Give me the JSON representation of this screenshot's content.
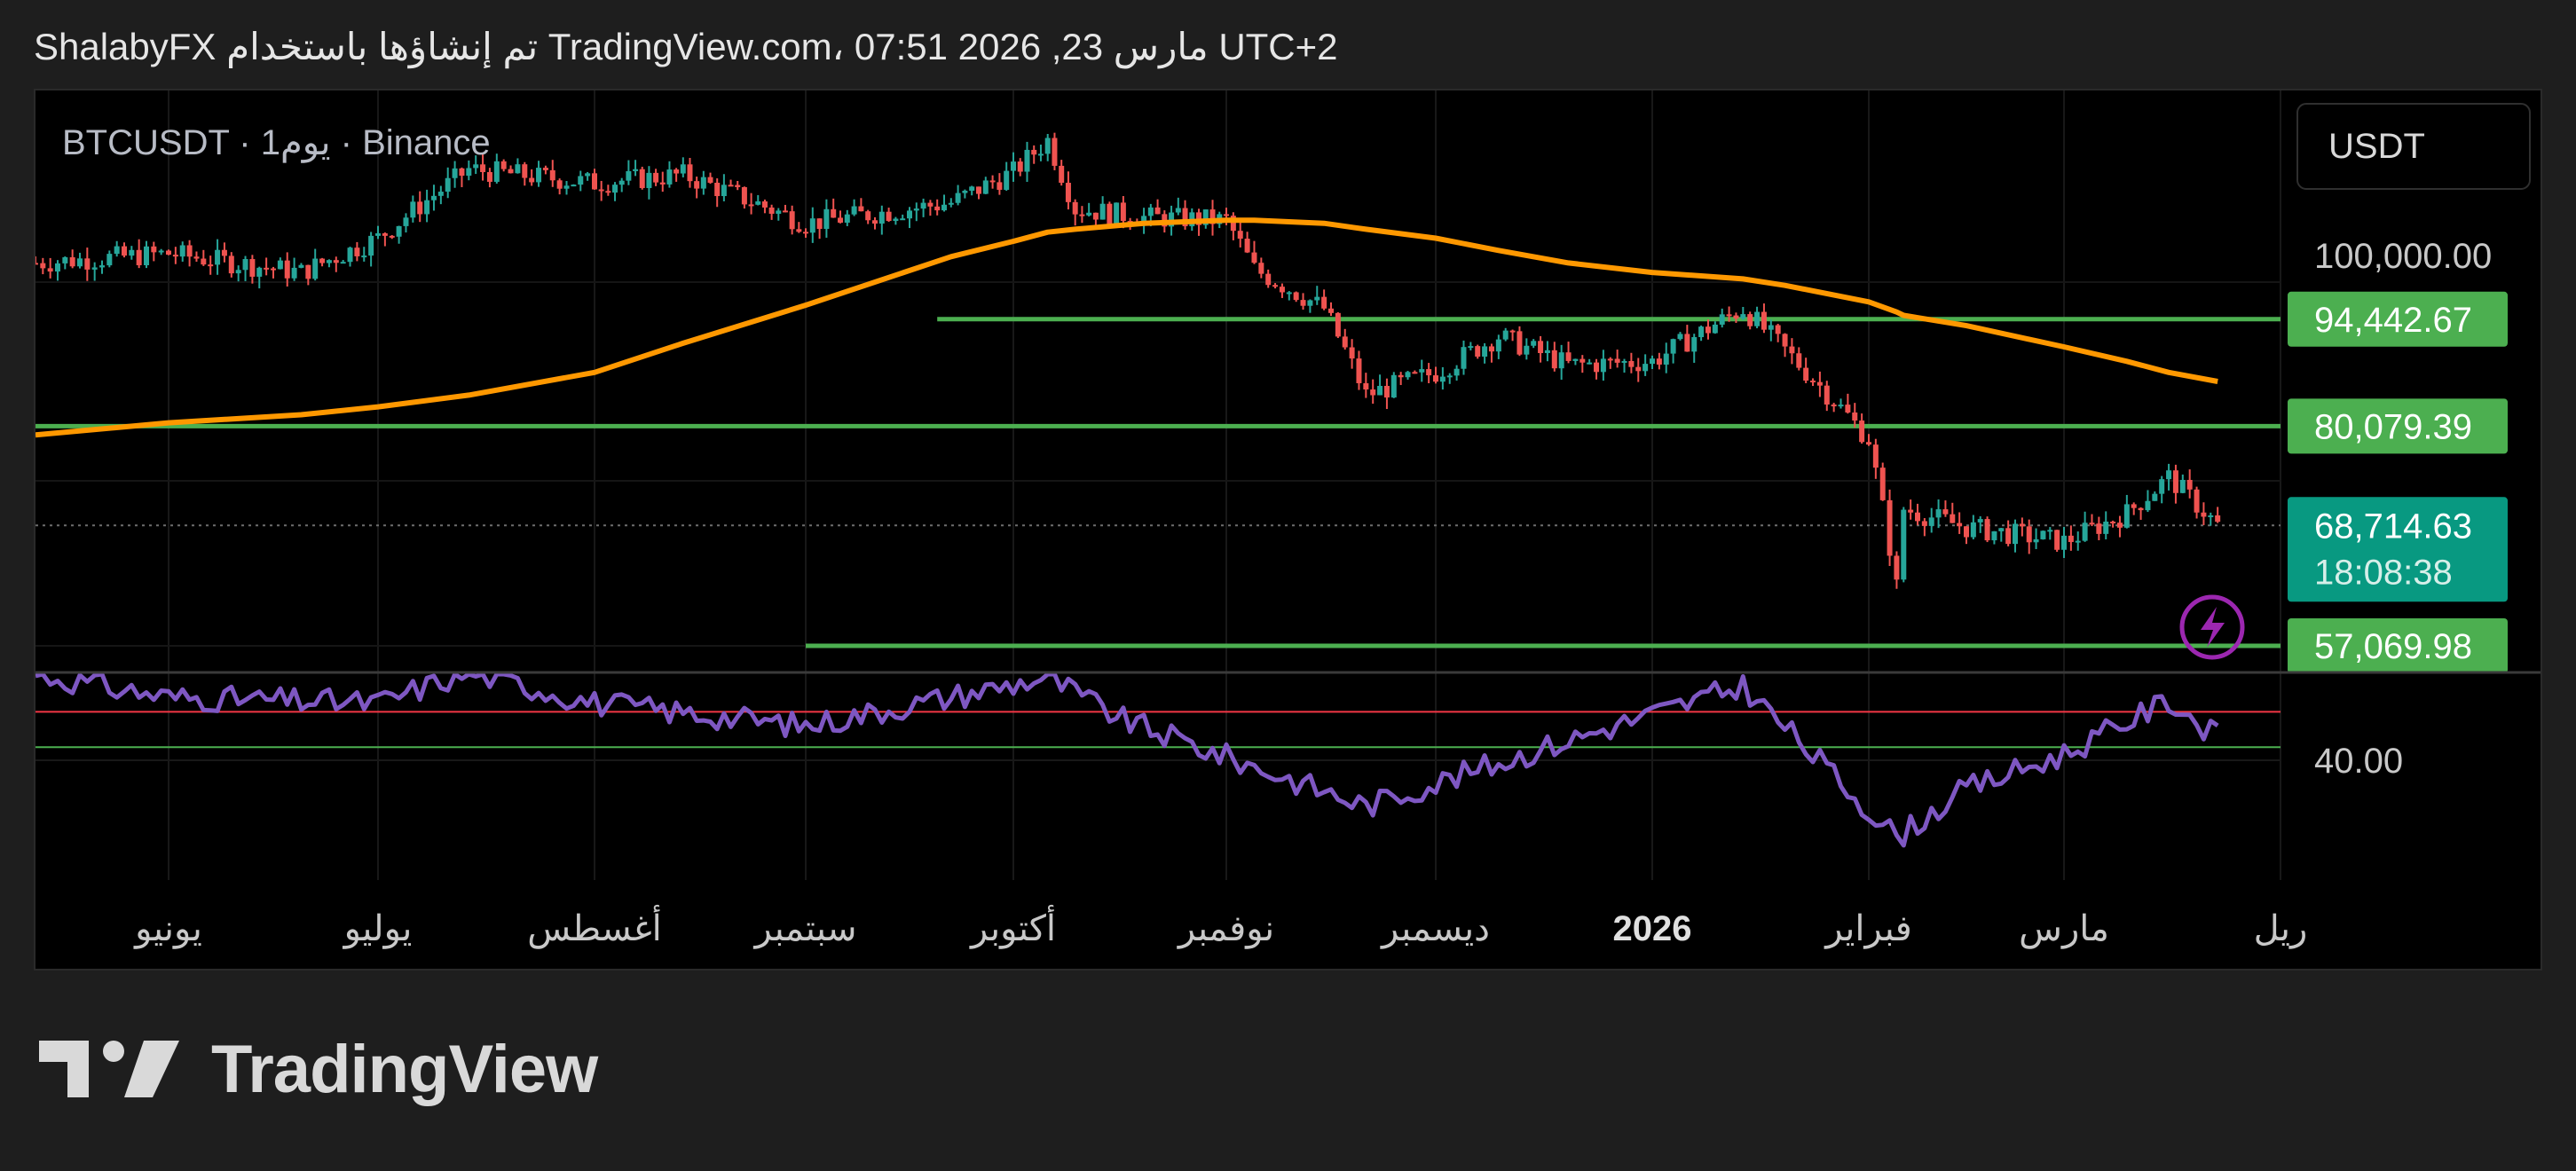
{
  "header": {
    "caption": "ShalabyFX تم إنشاؤها باستخدام TradingView.com، 07:51 2026 ,23 مارس UTC+2"
  },
  "symbol_info": {
    "text": "BTCUSDT · 1يوم · Binance"
  },
  "currency_button": {
    "label": "USDT"
  },
  "price_scale": {
    "tick_label": "100,000.00",
    "levels": [
      {
        "label": "94,442.67",
        "value": 94442.67,
        "color": "#4caf50"
      },
      {
        "label": "80,079.39",
        "value": 80079.39,
        "color": "#4caf50"
      },
      {
        "label": "57,069.98",
        "value": 57069.98,
        "color": "#4caf50"
      }
    ],
    "last_price": {
      "label": "68,714.63",
      "value": 68714.63,
      "countdown": "18:08:38",
      "color": "#089981"
    }
  },
  "rsi_scale": {
    "tick_label": "40.00",
    "upper_band": 70,
    "lower_band": 30,
    "upper_color": "#f23645",
    "lower_color": "#4caf50",
    "line_color": "#7e57c2"
  },
  "time_axis": {
    "labels": [
      "يونيو",
      "يوليو",
      "أغسطس",
      "سبتمبر",
      "أكتوبر",
      "نوفمبر",
      "ديسمبر",
      "2026",
      "فبراير",
      "مارس",
      "ريل"
    ]
  },
  "alert_icon": {
    "name": "lightning-icon",
    "color": "#9c27b0"
  },
  "brand": {
    "name": "TradingView"
  },
  "chart_data": {
    "type": "line",
    "title": "BTCUSDT · 1يوم · Binance",
    "x": [
      "2025-05-14",
      "2025-06-01",
      "2025-06-20",
      "2025-07-01",
      "2025-07-14",
      "2025-08-01",
      "2025-08-14",
      "2025-09-01",
      "2025-09-22",
      "2025-10-01",
      "2025-10-06",
      "2025-10-10",
      "2025-10-20",
      "2025-11-01",
      "2025-11-05",
      "2025-11-15",
      "2025-11-21",
      "2025-12-01",
      "2025-12-10",
      "2025-12-20",
      "2026-01-01",
      "2026-01-14",
      "2026-01-20",
      "2026-02-01",
      "2026-02-05",
      "2026-02-06",
      "2026-02-15",
      "2026-03-01",
      "2026-03-10",
      "2026-03-16",
      "2026-03-23"
    ],
    "series": [
      {
        "values": [
          103000,
          104500,
          101500,
          107000,
          119000,
          116500,
          118000,
          109500,
          113000,
          118500,
          124500,
          112000,
          110500,
          110000,
          102000,
          96000,
          84000,
          87000,
          92000,
          88000,
          88500,
          96000,
          90000,
          78500,
          62500,
          70500,
          68500,
          67000,
          70000,
          74000,
          68714.63
        ]
      },
      {
        "values": [
          79000,
          80500,
          81500,
          82500,
          84000,
          87000,
          91000,
          96500,
          104000,
          106500,
          108000,
          108500,
          109500,
          110000,
          110000,
          109500,
          108500,
          107000,
          105000,
          103000,
          101500,
          100500,
          99500,
          97000,
          95500,
          95000,
          93500,
          90500,
          88500,
          87000,
          85800
        ]
      }
    ],
    "rsi": {
      "x": [
        "2025-05-14",
        "2025-06-01",
        "2025-07-01",
        "2025-07-14",
        "2025-08-01",
        "2025-09-01",
        "2025-10-06",
        "2025-10-17",
        "2025-11-21",
        "2025-12-20",
        "2026-01-14",
        "2026-02-05",
        "2026-02-15",
        "2026-03-01",
        "2026-03-16",
        "2026-03-23"
      ],
      "values": [
        70,
        62,
        60,
        71,
        60,
        52,
        69,
        54,
        24,
        47,
        66,
        13,
        30,
        42,
        61,
        48
      ]
    },
    "horizontal_levels": [
      94442.67,
      80079.39,
      57069.98
    ],
    "ylabel_tick": "100,000.00",
    "rsi_tick": "40.00",
    "grid": true
  }
}
